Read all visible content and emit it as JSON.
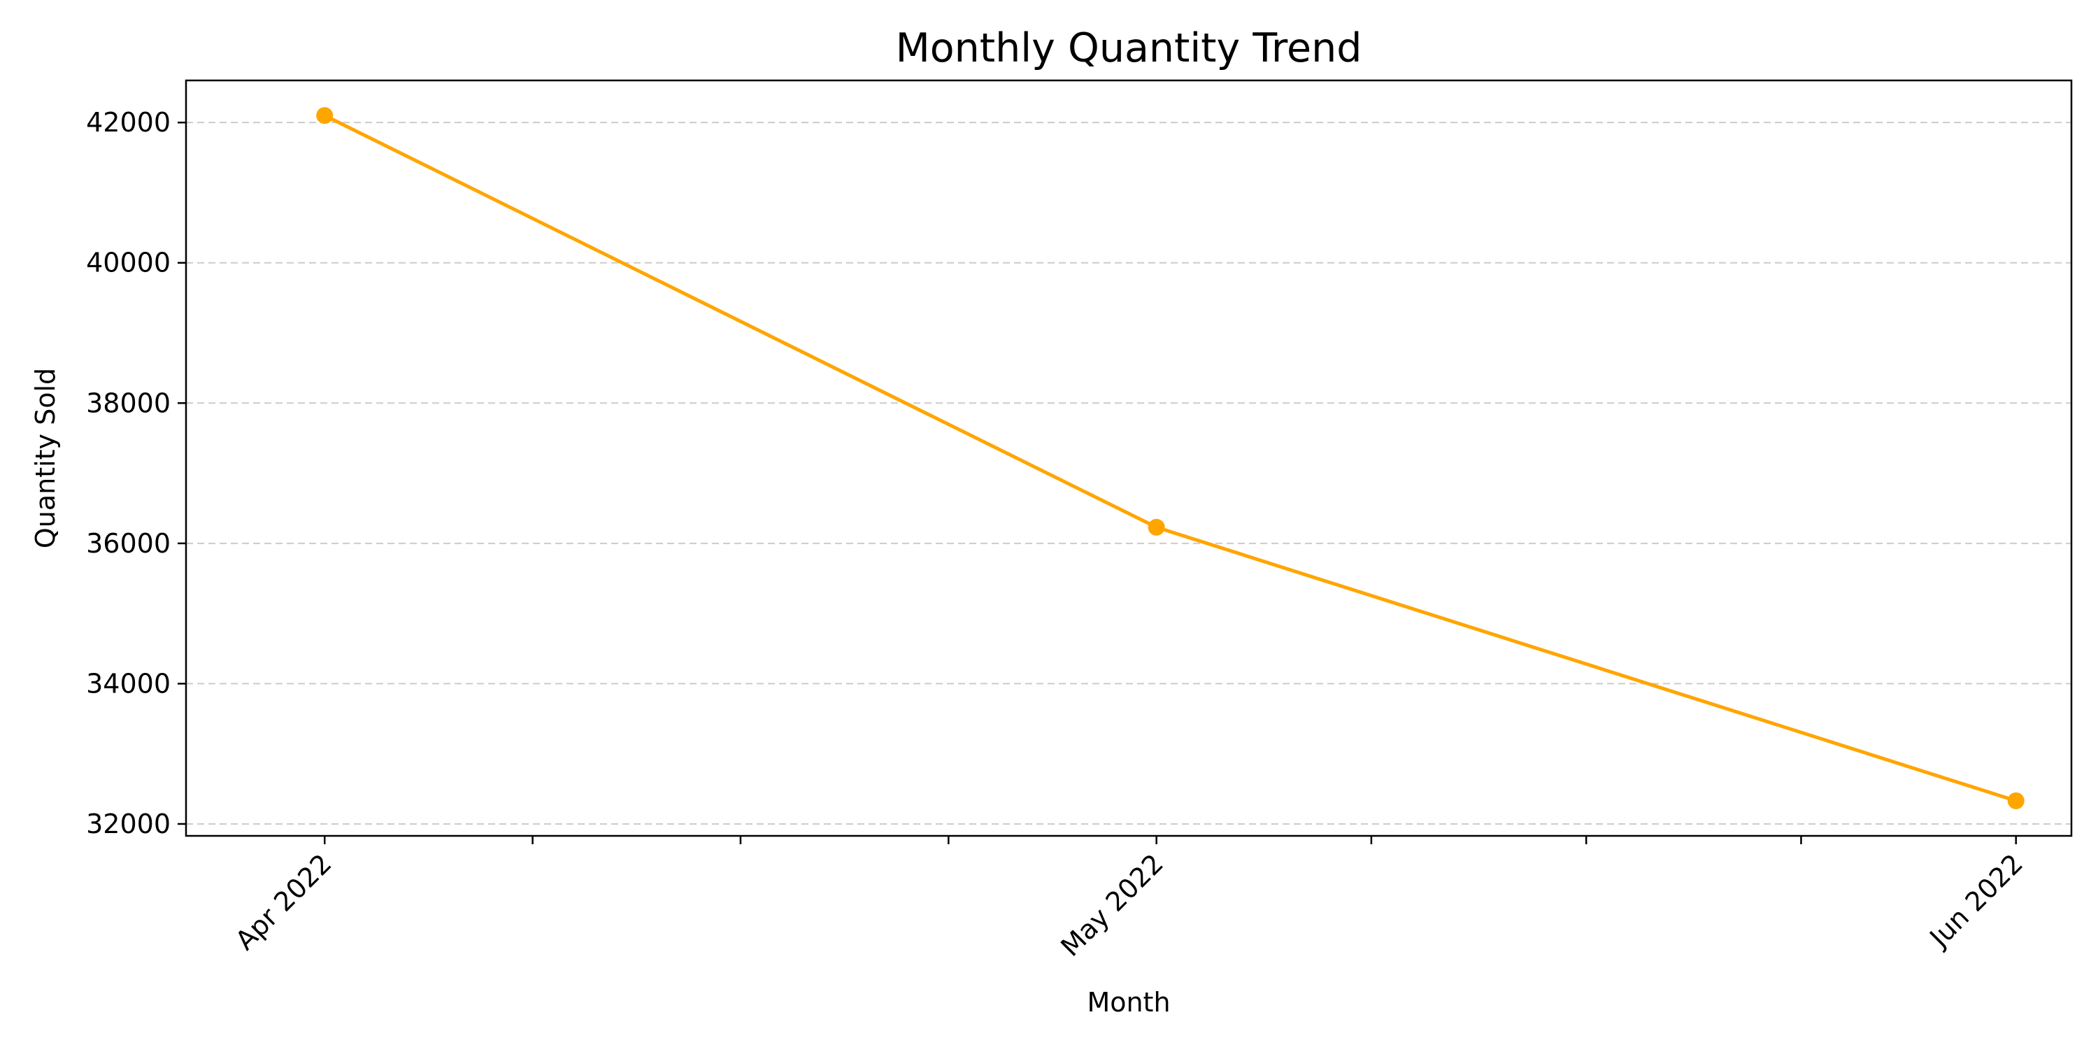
{
  "chart_data": {
    "type": "line",
    "title": "Monthly Quantity Trend",
    "xlabel": "Month",
    "ylabel": "Quantity Sold",
    "x": [
      "2022-04-01",
      "2022-05-01",
      "2022-06-01"
    ],
    "x_tick_labels": [
      "Apr 2022",
      "May 2022",
      "Jun 2022"
    ],
    "series": [
      {
        "values": [
          42100,
          36230,
          32330
        ],
        "color": "#FFA500"
      }
    ],
    "xlim": [
      "2022-03-27",
      "2022-06-03"
    ],
    "ylim": [
      31830,
      42600
    ],
    "y_ticks": [
      32000,
      34000,
      36000,
      38000,
      40000,
      42000
    ],
    "grid": {
      "axis": "y",
      "style": "dashed",
      "color": "#cccccc"
    },
    "marker": "circle",
    "legend": "none"
  }
}
